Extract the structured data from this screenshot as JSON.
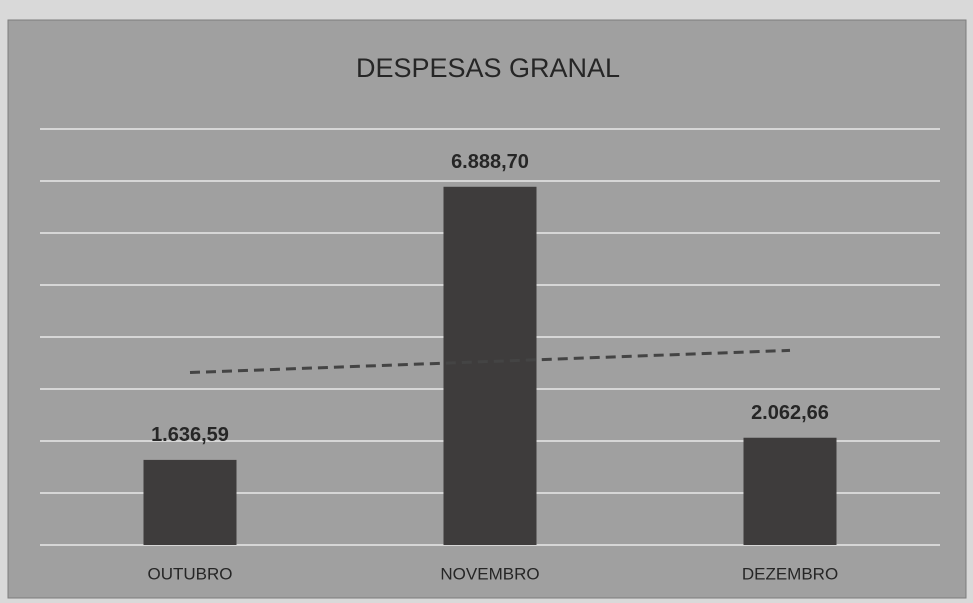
{
  "chart_data": {
    "type": "bar",
    "title": "DESPESAS GRANAL",
    "categories": [
      "OUTUBRO",
      "NOVEMBRO",
      "DEZEMBRO"
    ],
    "values": [
      1636.59,
      6888.7,
      2062.66
    ],
    "value_labels": [
      "1.636,59",
      "6.888,70",
      "2.062,66"
    ],
    "color": "#3e3c3c",
    "ylim": [
      0,
      8000
    ],
    "yticks": [
      0,
      1000,
      2000,
      3000,
      4000,
      5000,
      6000,
      7000,
      8000
    ],
    "grid": true,
    "trendline": "linear"
  }
}
